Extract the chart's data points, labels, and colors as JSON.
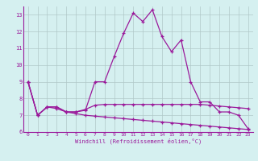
{
  "x": [
    0,
    1,
    2,
    3,
    4,
    5,
    6,
    7,
    8,
    9,
    10,
    11,
    12,
    13,
    14,
    15,
    16,
    17,
    18,
    19,
    20,
    21,
    22,
    23
  ],
  "line1": [
    9.0,
    7.0,
    7.5,
    7.5,
    7.2,
    7.2,
    7.3,
    9.0,
    9.0,
    10.5,
    11.9,
    13.1,
    12.6,
    13.3,
    11.7,
    10.8,
    11.5,
    9.0,
    7.8,
    7.8,
    7.2,
    7.2,
    7.0,
    6.2
  ],
  "line2": [
    9.0,
    7.0,
    7.5,
    7.5,
    7.2,
    7.2,
    7.35,
    7.6,
    7.65,
    7.65,
    7.65,
    7.65,
    7.65,
    7.65,
    7.65,
    7.65,
    7.65,
    7.65,
    7.65,
    7.6,
    7.55,
    7.5,
    7.45,
    7.4
  ],
  "line3": [
    9.0,
    7.0,
    7.5,
    7.4,
    7.2,
    7.1,
    7.0,
    6.95,
    6.9,
    6.85,
    6.8,
    6.75,
    6.7,
    6.65,
    6.6,
    6.55,
    6.5,
    6.45,
    6.4,
    6.35,
    6.3,
    6.25,
    6.2,
    6.15
  ],
  "line_color": "#9b1a9b",
  "bg_color": "#d5f0f0",
  "grid_color": "#b0c8c8",
  "xlabel": "Windchill (Refroidissement éolien,°C)",
  "ylim": [
    6.0,
    13.5
  ],
  "xlim_min": -0.5,
  "xlim_max": 23.5,
  "yticks": [
    6,
    7,
    8,
    9,
    10,
    11,
    12,
    13
  ],
  "xticks": [
    0,
    1,
    2,
    3,
    4,
    5,
    6,
    7,
    8,
    9,
    10,
    11,
    12,
    13,
    14,
    15,
    16,
    17,
    18,
    19,
    20,
    21,
    22,
    23
  ]
}
